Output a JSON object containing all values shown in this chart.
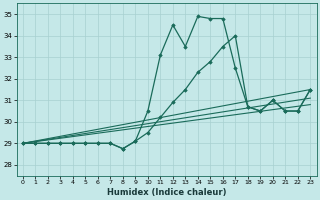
{
  "xlabel": "Humidex (Indice chaleur)",
  "bg_color": "#c5e8e8",
  "grid_color": "#a8d0d0",
  "line_color": "#1a6b5a",
  "xlim": [
    -0.5,
    23.5
  ],
  "ylim": [
    27.5,
    35.5
  ],
  "xticks": [
    0,
    1,
    2,
    3,
    4,
    5,
    6,
    7,
    8,
    9,
    10,
    11,
    12,
    13,
    14,
    15,
    16,
    17,
    18,
    19,
    20,
    21,
    22,
    23
  ],
  "yticks": [
    28,
    29,
    30,
    31,
    32,
    33,
    34,
    35
  ],
  "curve_high_x": [
    0,
    1,
    2,
    3,
    4,
    5,
    6,
    7,
    8,
    9,
    10,
    11,
    12,
    13,
    14,
    15,
    16,
    17,
    18,
    19,
    20,
    21,
    22,
    23
  ],
  "curve_high_y": [
    29.0,
    29.0,
    29.0,
    29.0,
    29.0,
    29.0,
    29.0,
    29.0,
    28.75,
    29.1,
    30.5,
    33.1,
    34.5,
    33.5,
    34.9,
    34.8,
    34.8,
    32.5,
    30.7,
    30.5,
    31.0,
    30.5,
    30.5,
    31.5
  ],
  "curve_low_x": [
    0,
    1,
    2,
    3,
    4,
    5,
    6,
    7,
    8,
    9,
    10,
    11,
    12,
    13,
    14,
    15,
    16,
    17,
    18,
    19,
    20,
    21,
    22,
    23
  ],
  "curve_low_y": [
    29.0,
    29.0,
    29.0,
    29.0,
    29.0,
    29.0,
    29.0,
    29.0,
    28.75,
    29.1,
    29.5,
    30.2,
    30.9,
    31.5,
    32.3,
    32.8,
    33.5,
    34.0,
    30.7,
    30.5,
    31.0,
    30.5,
    30.5,
    31.5
  ],
  "trend1_x": [
    0,
    23
  ],
  "trend1_y": [
    29.0,
    31.5
  ],
  "trend2_x": [
    0,
    23
  ],
  "trend2_y": [
    29.0,
    31.1
  ],
  "trend3_x": [
    0,
    23
  ],
  "trend3_y": [
    29.0,
    30.8
  ]
}
